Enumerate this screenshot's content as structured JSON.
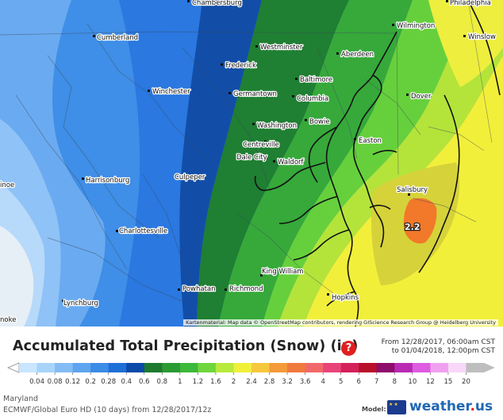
{
  "map": {
    "cities": [
      {
        "name": "Chambersburg"
      },
      {
        "name": "Philadelphia"
      },
      {
        "name": "Cumberland"
      },
      {
        "name": "Westminster"
      },
      {
        "name": "Wilmington"
      },
      {
        "name": "Winslow"
      },
      {
        "name": "Aberdeen"
      },
      {
        "name": "Frederick"
      },
      {
        "name": "Baltimore"
      },
      {
        "name": "Winchester"
      },
      {
        "name": "Germantown"
      },
      {
        "name": "Columbia"
      },
      {
        "name": "Dover"
      },
      {
        "name": "Washington"
      },
      {
        "name": "Bowie"
      },
      {
        "name": "Easton"
      },
      {
        "name": "Centreville"
      },
      {
        "name": "Dale City"
      },
      {
        "name": "Waldorf"
      },
      {
        "name": "Harrisonburg"
      },
      {
        "name": "Culpeper"
      },
      {
        "name": "Salisbury"
      },
      {
        "name": "Charlottesville"
      },
      {
        "name": "King William"
      },
      {
        "name": "Powhatan"
      },
      {
        "name": "Richmond"
      },
      {
        "name": "Lynchburg"
      },
      {
        "name": "Hopkins"
      },
      {
        "name": "inoe"
      },
      {
        "name": "noke"
      }
    ],
    "max_value_label": "2.2",
    "attribution": "Kartenmaterial: Map data © OpenStreetMap contributors, rendering GIScience Research Group @ Heidelberg University"
  },
  "legend": {
    "title": "Accumulated Total Precipitation (Snow) (in)",
    "help_icon": "question-mark-icon",
    "date_from": "From 12/28/2017, 06:00am CST",
    "date_to": "to 01/04/2018, 12:00pm CST",
    "ticks": [
      "0.04",
      "0.08",
      "0.12",
      "0.2",
      "0.28",
      "0.4",
      "0.6",
      "0.8",
      "1",
      "1.2",
      "1.6",
      "2",
      "2.4",
      "2.8",
      "3.2",
      "3.6",
      "4",
      "5",
      "6",
      "7",
      "8",
      "10",
      "12",
      "15",
      "20"
    ],
    "colors": [
      "#c8e6ff",
      "#a8d4fb",
      "#84bdf5",
      "#5fa4ee",
      "#3c8be6",
      "#1e6fd6",
      "#0c4aa8",
      "#1d7a2e",
      "#2a9a32",
      "#3cb83a",
      "#6fd63c",
      "#b7ea3c",
      "#f0f03a",
      "#f6c83c",
      "#f59a3a",
      "#f07a3c",
      "#f2686a",
      "#e8447a",
      "#d4205a",
      "#b8102a",
      "#8e0c6a",
      "#b82ab4",
      "#dd5ce0",
      "#f0a0f0",
      "#f8d8f8",
      "#bebebe"
    ]
  },
  "footer": {
    "region": "Maryland",
    "model_line": "ECMWF/Global Euro HD (10 days) from 12/28/2017/12z",
    "model_label": "Model:",
    "brand_name": "weather",
    "brand_dot": ".",
    "brand_tld": "us"
  }
}
